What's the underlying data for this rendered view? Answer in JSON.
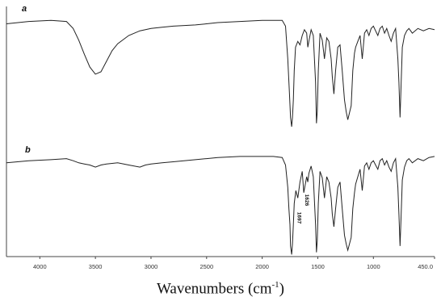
{
  "chart_data": {
    "type": "line",
    "xlabel": {
      "main": "Wavenumbers (cm",
      "sup": "-1",
      "close": ")"
    },
    "xlim": [
      4300,
      450
    ],
    "x_ticks": [
      4000,
      3500,
      3000,
      2500,
      2000,
      1500,
      1000,
      450
    ],
    "x_tick_labels": [
      "4000",
      "3500",
      "3000",
      "2500",
      "2000",
      "1500",
      "1000",
      "450.0"
    ],
    "panels": [
      {
        "label": "a",
        "ylim": [
          0,
          100
        ],
        "x": [
          4300,
          4100,
          3900,
          3760,
          3700,
          3650,
          3600,
          3550,
          3500,
          3450,
          3400,
          3350,
          3300,
          3200,
          3100,
          3000,
          2900,
          2800,
          2600,
          2500,
          2400,
          2200,
          2000,
          1900,
          1820,
          1790,
          1770,
          1760,
          1755,
          1745,
          1735,
          1728,
          1720,
          1712,
          1700,
          1680,
          1660,
          1640,
          1620,
          1600,
          1590,
          1580,
          1560,
          1540,
          1520,
          1512,
          1505,
          1495,
          1480,
          1460,
          1440,
          1420,
          1400,
          1380,
          1370,
          1355,
          1340,
          1320,
          1300,
          1280,
          1260,
          1245,
          1230,
          1215,
          1200,
          1185,
          1170,
          1160,
          1140,
          1120,
          1100,
          1080,
          1060,
          1040,
          1020,
          1000,
          980,
          960,
          940,
          920,
          900,
          880,
          860,
          840,
          820,
          800,
          780,
          770,
          760,
          750,
          740,
          720,
          700,
          680,
          650,
          600,
          550,
          500,
          450
        ],
        "y": [
          90,
          92,
          93,
          92,
          86,
          76,
          64,
          53,
          47,
          49,
          58,
          67,
          73,
          80,
          84,
          86,
          87,
          88,
          89,
          90,
          91,
          92,
          93,
          93,
          93,
          88,
          60,
          40,
          30,
          10,
          2,
          10,
          25,
          50,
          70,
          75,
          72,
          80,
          85,
          82,
          70,
          75,
          85,
          80,
          40,
          5,
          15,
          50,
          82,
          76,
          60,
          78,
          75,
          60,
          45,
          30,
          50,
          70,
          72,
          50,
          25,
          15,
          8,
          14,
          20,
          50,
          65,
          70,
          75,
          80,
          60,
          82,
          85,
          80,
          86,
          88,
          84,
          80,
          86,
          88,
          82,
          86,
          80,
          75,
          82,
          86,
          60,
          40,
          10,
          40,
          70,
          80,
          84,
          86,
          82,
          86,
          84,
          86,
          85
        ]
      },
      {
        "label": "b",
        "ylim": [
          0,
          100
        ],
        "x": [
          4300,
          4100,
          3900,
          3760,
          3700,
          3650,
          3600,
          3550,
          3500,
          3450,
          3400,
          3300,
          3200,
          3100,
          3050,
          3000,
          2900,
          2800,
          2600,
          2500,
          2400,
          2200,
          2000,
          1900,
          1820,
          1790,
          1770,
          1760,
          1750,
          1745,
          1735,
          1728,
          1720,
          1712,
          1697,
          1680,
          1660,
          1640,
          1626,
          1600,
          1590,
          1580,
          1560,
          1540,
          1520,
          1512,
          1505,
          1495,
          1480,
          1460,
          1440,
          1420,
          1400,
          1380,
          1370,
          1355,
          1340,
          1320,
          1300,
          1280,
          1260,
          1245,
          1230,
          1215,
          1200,
          1185,
          1170,
          1160,
          1140,
          1120,
          1100,
          1080,
          1060,
          1040,
          1020,
          1000,
          980,
          960,
          940,
          920,
          900,
          880,
          860,
          840,
          820,
          800,
          780,
          770,
          760,
          750,
          740,
          720,
          700,
          680,
          650,
          600,
          550,
          500,
          450
        ],
        "y": [
          88,
          90,
          91,
          92,
          90,
          88,
          87,
          86,
          84,
          86,
          87,
          88,
          86,
          84,
          86,
          87,
          88,
          89,
          91,
          92,
          93,
          94,
          94,
          94,
          93,
          86,
          65,
          45,
          30,
          10,
          2,
          12,
          30,
          50,
          62,
          55,
          70,
          80,
          60,
          75,
          70,
          78,
          85,
          75,
          30,
          4,
          15,
          50,
          80,
          74,
          55,
          75,
          70,
          55,
          40,
          28,
          45,
          65,
          70,
          45,
          20,
          12,
          6,
          12,
          18,
          45,
          60,
          68,
          75,
          82,
          62,
          85,
          88,
          82,
          88,
          90,
          86,
          82,
          90,
          92,
          86,
          90,
          84,
          80,
          88,
          92,
          65,
          40,
          10,
          40,
          72,
          84,
          90,
          92,
          88,
          92,
          90,
          93,
          94
        ]
      }
    ],
    "annotations": [
      {
        "panel": "b",
        "text": "1697",
        "x": 1697
      },
      {
        "panel": "b",
        "text": "1626",
        "x": 1626
      }
    ]
  }
}
